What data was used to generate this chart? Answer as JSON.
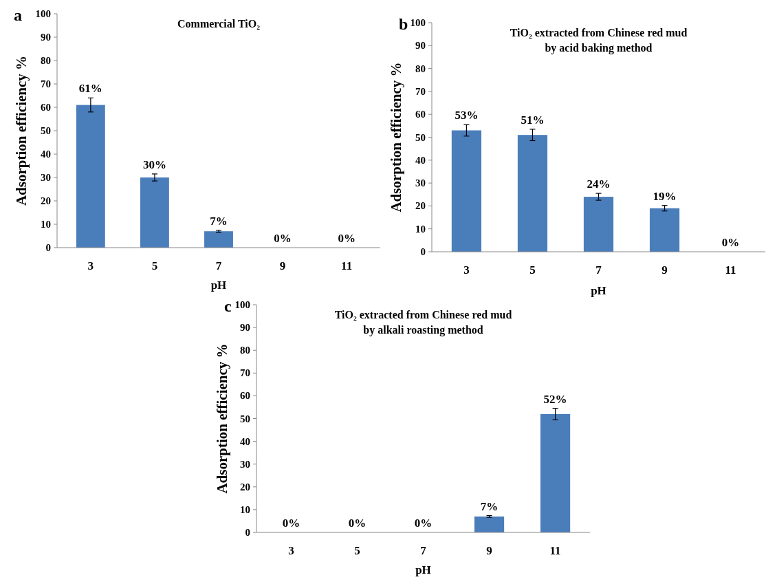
{
  "chart_data": [
    {
      "type": "bar",
      "title": "Commercial TiO₂",
      "xlabel": "pH",
      "ylabel": "Adsorption efficiency %",
      "annotations": [
        "a"
      ],
      "categories": [
        "3",
        "5",
        "7",
        "9",
        "11"
      ],
      "color": "#4a7ebb",
      "values": [
        61,
        30,
        7,
        0,
        0
      ],
      "errors": [
        3,
        1.5,
        0.4,
        null,
        null
      ],
      "value_labels": [
        "61%",
        "30%",
        "7%",
        "0%",
        "0%"
      ],
      "ylim": [
        0,
        100
      ],
      "yticks": [
        0,
        10,
        20,
        30,
        40,
        50,
        60,
        70,
        80,
        90,
        100
      ],
      "grid": false
    },
    {
      "type": "bar",
      "title": "TiO₂ extracted from Chinese red mud\nby acid baking method",
      "xlabel": "pH",
      "ylabel": "Adsorption efficiency %",
      "annotations": [
        "b"
      ],
      "categories": [
        "3",
        "5",
        "7",
        "9",
        "11"
      ],
      "color": "#4a7ebb",
      "values": [
        53,
        51,
        24,
        19,
        0
      ],
      "errors": [
        2.5,
        2.5,
        1.5,
        1.2,
        null
      ],
      "value_labels": [
        "53%",
        "51%",
        "24%",
        "19%",
        "0%"
      ],
      "ylim": [
        0,
        100
      ],
      "yticks": [
        0,
        10,
        20,
        30,
        40,
        50,
        60,
        70,
        80,
        90,
        100
      ],
      "grid": false
    },
    {
      "type": "bar",
      "title": "TiO₂ extracted from Chinese red mud\nby alkali roasting method",
      "xlabel": "pH",
      "ylabel": "Adsorption efficiency %",
      "annotations": [
        "c"
      ],
      "categories": [
        "3",
        "5",
        "7",
        "9",
        "11"
      ],
      "color": "#4a7ebb",
      "values": [
        0,
        0,
        0,
        7,
        52
      ],
      "errors": [
        null,
        null,
        null,
        0.4,
        2.5
      ],
      "value_labels": [
        "0%",
        "0%",
        "0%",
        "7%",
        "52%"
      ],
      "ylim": [
        0,
        100
      ],
      "yticks": [
        0,
        10,
        20,
        30,
        40,
        50,
        60,
        70,
        80,
        90,
        100
      ],
      "grid": false
    }
  ]
}
